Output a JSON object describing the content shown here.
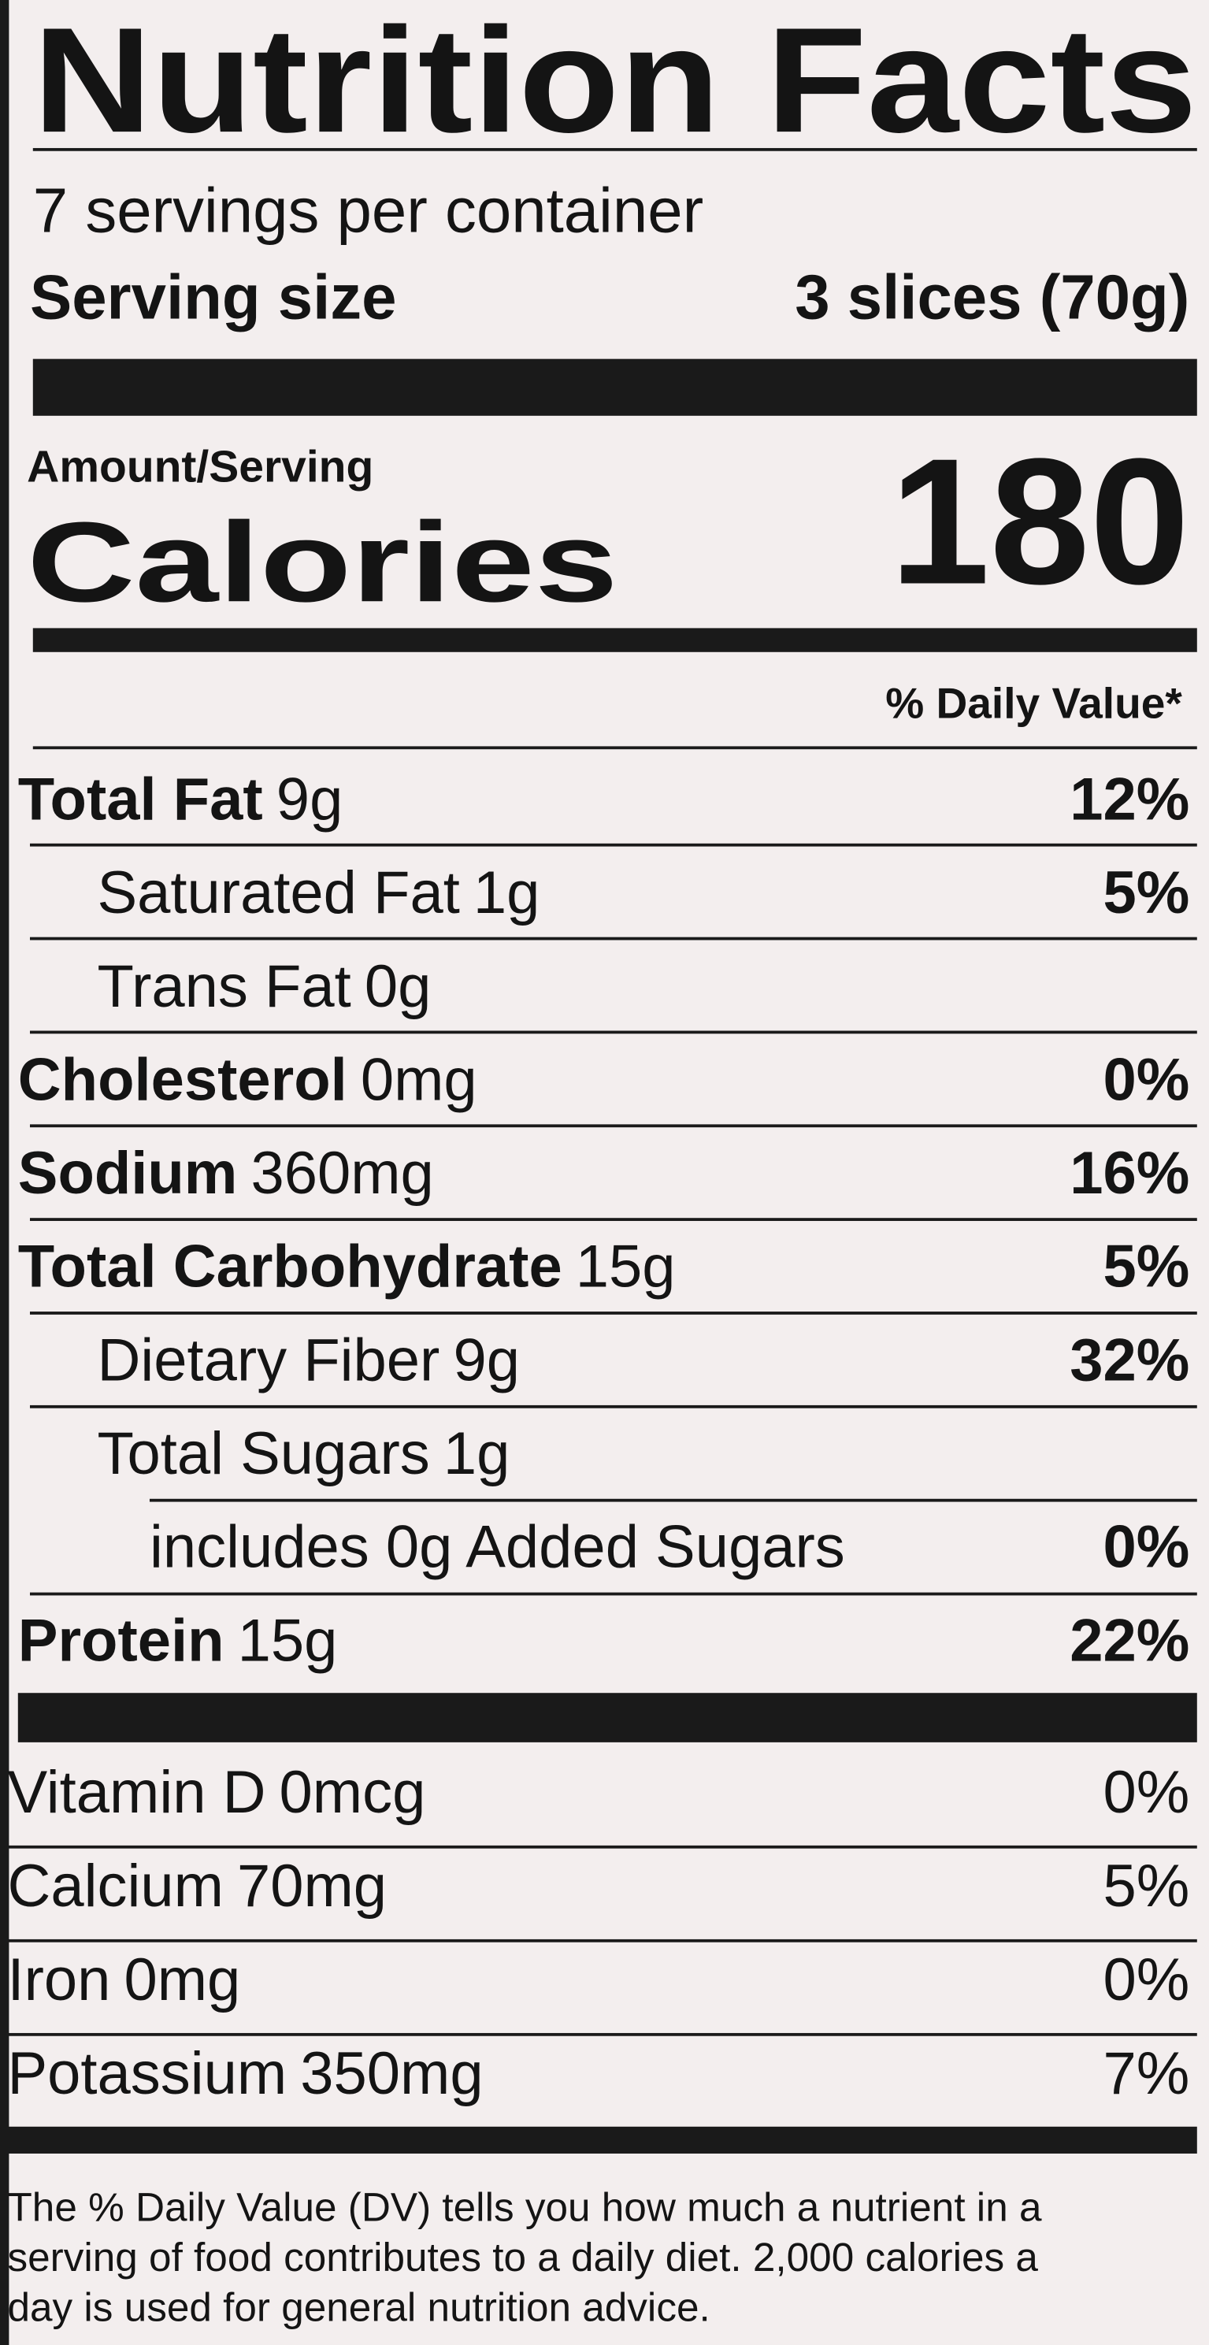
{
  "title": "Nutrition Facts",
  "servings": "7 servings per container",
  "serving_size": {
    "label": "Serving size",
    "value": "3 slices (70g)"
  },
  "amount_per_serving": "Amount/Serving",
  "calories": {
    "label": "Calories",
    "value": "180"
  },
  "daily_value_header": "% Daily Value*",
  "nutrients": [
    {
      "name": "Total Fat",
      "amount": "9g",
      "dv": "12%"
    },
    {
      "name": "Saturated Fat",
      "amount": "1g",
      "dv": "5%"
    },
    {
      "name": "Trans Fat",
      "amount": "0g"
    },
    {
      "name": "Cholesterol",
      "amount": "0mg",
      "dv": "0%"
    },
    {
      "name": "Sodium",
      "amount": "360mg",
      "dv": "16%"
    },
    {
      "name": "Total Carbohydrate",
      "amount": "15g",
      "dv": "5%"
    },
    {
      "name": "Dietary Fiber",
      "amount": "9g",
      "dv": "32%"
    },
    {
      "name": "Total Sugars",
      "amount": "1g"
    },
    {
      "name": "includes 0g Added Sugars",
      "dv": "0%"
    },
    {
      "name": "Protein",
      "amount": "15g",
      "dv": "22%"
    }
  ],
  "vitamins": [
    {
      "name": "Vitamin D",
      "amount": "0mcg",
      "dv": "0%"
    },
    {
      "name": "Calcium",
      "amount": "70mg",
      "dv": "5%"
    },
    {
      "name": "Iron",
      "amount": "0mg",
      "dv": "0%"
    },
    {
      "name": "Potassium",
      "amount": "350mg",
      "dv": "7%"
    }
  ],
  "footnote": [
    "The % Daily Value (DV) tells you how much a nutrient in a",
    "serving of food contributes to a daily diet. 2,000 calories a",
    "day is used for general nutrition advice."
  ]
}
